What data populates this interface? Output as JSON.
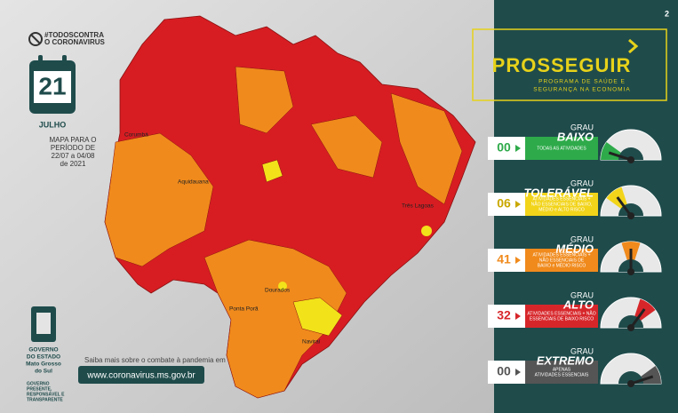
{
  "header": {
    "hashtag_line1": "#TODOSCONTRA",
    "hashtag_line2": "O CORONAVIRUS",
    "day": "21",
    "month": "JULHO",
    "period": [
      "MAPA PARA O",
      "PERÍODO DE",
      "22/07 a 04/08",
      "de 2021"
    ]
  },
  "page_number": "2",
  "map": {
    "cities": [
      "Aquidauana",
      "Três Lagoas",
      "Dourados",
      "Naviraí",
      "Ponta Porã",
      "Corumbá"
    ]
  },
  "footer": {
    "info": "Saiba mais sobre o combate à pandemia em",
    "url": "www.coronavirus.ms.gov.br",
    "government": [
      "GOVERNO",
      "DO ESTADO",
      "Mato Grosso",
      "do Sul"
    ],
    "motto": [
      "GOVERNO",
      "PRESENTE,",
      "RESPONSÁVEL E",
      "TRANSPARENTE"
    ]
  },
  "program": {
    "title": "PROSSEGUIR",
    "subtitle": [
      "PROGRAMA DE SAÚDE E",
      "SEGURANÇA NA ECONOMIA"
    ]
  },
  "levels": [
    {
      "count": "00",
      "grau": "GRAU",
      "name": "BAIXO",
      "color": "#2eaa4a",
      "desc": [
        "TODAS AS ATIVIDADES"
      ]
    },
    {
      "count": "06",
      "grau": "GRAU",
      "name": "TOLERÁVEL",
      "color": "#f2d41a",
      "desc": [
        "ATIVIDADES ESSENCIAIS +",
        "NÃO ESSENCIAIS DE BAIXO,",
        "MÉDIO e ALTO RISCO"
      ]
    },
    {
      "count": "41",
      "grau": "GRAU",
      "name": "MÉDIO",
      "color": "#f08a1c",
      "desc": [
        "ATIVIDADES ESSENCIAIS +",
        "NÃO ESSENCIAIS DE",
        "BAIXO e MÉDIO RISCO"
      ]
    },
    {
      "count": "32",
      "grau": "GRAU",
      "name": "ALTO",
      "color": "#d7262a",
      "desc": [
        "ATIVIDADES ESSENCIAIS + NÃO",
        "ESSENCIAIS DE BAIXO RISCO"
      ]
    },
    {
      "count": "00",
      "grau": "GRAU",
      "name": "EXTREMO",
      "color": "#555555",
      "desc": [
        "APENAS",
        "ATIVIDADES ESSENCIAIS"
      ]
    }
  ]
}
